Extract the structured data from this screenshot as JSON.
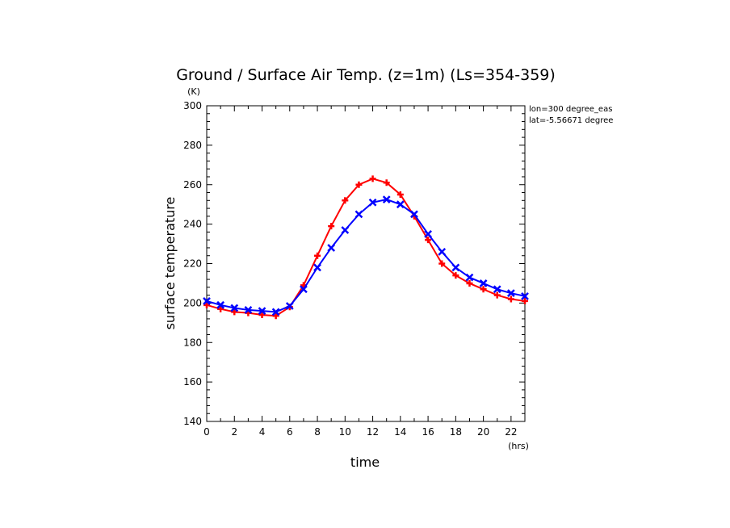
{
  "chart_data": {
    "type": "line",
    "title": "Ground / Surface Air Temp. (z=1m) (Ls=354-359)",
    "xlabel": "time",
    "ylabel": "surface temperature",
    "x_unit": "(hrs)",
    "y_unit": "(K)",
    "annotations": [
      "lon=300 degree_eas",
      "lat=-5.56671 degree"
    ],
    "xlim": [
      0,
      23
    ],
    "ylim": [
      140,
      300
    ],
    "x_ticks": [
      0,
      2,
      4,
      6,
      8,
      10,
      12,
      14,
      16,
      18,
      20,
      22
    ],
    "y_ticks": [
      140,
      160,
      180,
      200,
      220,
      240,
      260,
      280,
      300
    ],
    "grid": false,
    "x": [
      0,
      1,
      2,
      3,
      4,
      5,
      6,
      7,
      8,
      9,
      10,
      11,
      12,
      13,
      14,
      15,
      16,
      17,
      18,
      19,
      20,
      21,
      22,
      23
    ],
    "series": [
      {
        "color": "#ff0000",
        "marker": "plus",
        "values": [
          199,
          197,
          195.5,
          195,
          194,
          193.5,
          198,
          209,
          224,
          239,
          252,
          260,
          263,
          261,
          255,
          244,
          232,
          220,
          214,
          210,
          207,
          204,
          202,
          201
        ]
      },
      {
        "color": "#0000ff",
        "marker": "x",
        "values": [
          201,
          199,
          197.5,
          196.5,
          196,
          195.5,
          198.5,
          207,
          218,
          228,
          237,
          245,
          251,
          252.5,
          250,
          245,
          235,
          226,
          218,
          213,
          210,
          207,
          205,
          203.5
        ]
      }
    ]
  }
}
